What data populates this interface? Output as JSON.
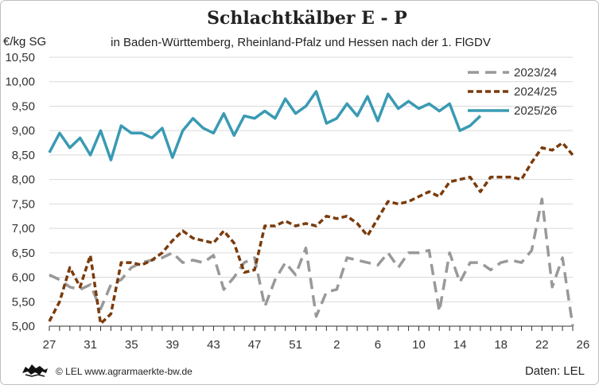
{
  "chart_data": {
    "type": "line",
    "title": "Schlachtkälber E - P",
    "subtitle": "in Baden-Württemberg, Rheinland-Pfalz und Hessen nach der 1. FlGDV",
    "ylabel": "€/kg SG",
    "ylim": [
      5.0,
      10.5
    ],
    "y_ticks": [
      "5,00",
      "5,50",
      "6,00",
      "6,50",
      "7,00",
      "7,50",
      "8,00",
      "8,50",
      "9,00",
      "9,50",
      "10,00",
      "10,50"
    ],
    "x_ticks": [
      "27",
      "31",
      "35",
      "39",
      "43",
      "47",
      "51",
      "2",
      "6",
      "10",
      "14",
      "18",
      "22",
      "26"
    ],
    "x_weeks": [
      27,
      28,
      29,
      30,
      31,
      32,
      33,
      34,
      35,
      36,
      37,
      38,
      39,
      40,
      41,
      42,
      43,
      44,
      45,
      46,
      47,
      48,
      49,
      50,
      51,
      52,
      1,
      2,
      3,
      4,
      5,
      6,
      7,
      8,
      9,
      10,
      11,
      12,
      13,
      14,
      15,
      16,
      17,
      18,
      19,
      20,
      21,
      22,
      23,
      24,
      25,
      26
    ],
    "grid": "horizontal",
    "legend_position": "top-right",
    "series": [
      {
        "name": "2023/24",
        "color": "#999999",
        "style": "dashed",
        "values": [
          6.05,
          5.95,
          5.8,
          5.75,
          5.85,
          5.35,
          5.85,
          5.95,
          6.2,
          6.3,
          6.35,
          6.4,
          6.5,
          6.3,
          6.35,
          6.3,
          6.45,
          5.75,
          6.0,
          6.3,
          6.4,
          5.4,
          5.95,
          6.3,
          6.05,
          6.6,
          5.2,
          5.7,
          5.75,
          6.4,
          6.35,
          6.3,
          6.25,
          6.5,
          6.2,
          6.5,
          6.5,
          6.55,
          5.3,
          6.5,
          5.9,
          6.3,
          6.3,
          6.15,
          6.3,
          6.35,
          6.3,
          6.55,
          7.6,
          5.8,
          6.4,
          5.0
        ]
      },
      {
        "name": "2024/25",
        "color": "#7a3b0c",
        "style": "dotted",
        "values": [
          5.1,
          5.5,
          6.2,
          5.8,
          6.45,
          5.05,
          5.25,
          6.3,
          6.3,
          6.25,
          6.35,
          6.5,
          6.75,
          6.95,
          6.8,
          6.75,
          6.7,
          6.95,
          6.7,
          6.1,
          6.15,
          7.05,
          7.05,
          7.15,
          7.05,
          7.1,
          7.05,
          7.25,
          7.2,
          7.25,
          7.1,
          6.85,
          7.2,
          7.55,
          7.5,
          7.55,
          7.65,
          7.75,
          7.65,
          7.95,
          8.0,
          8.05,
          7.75,
          8.05,
          8.05,
          8.05,
          8.0,
          8.35,
          8.65,
          8.6,
          8.75,
          8.5
        ]
      },
      {
        "name": "2025/26",
        "color": "#3a9ab3",
        "style": "solid",
        "values": [
          8.55,
          8.95,
          8.65,
          8.85,
          8.5,
          9.0,
          8.4,
          9.1,
          8.95,
          8.95,
          8.85,
          9.05,
          8.45,
          9.0,
          9.25,
          9.05,
          8.95,
          9.35,
          8.9,
          9.3,
          9.25,
          9.4,
          9.25,
          9.65,
          9.35,
          9.5,
          9.8,
          9.15,
          9.25,
          9.55,
          9.3,
          9.7,
          9.2,
          9.75,
          9.45,
          9.6,
          9.45,
          9.55,
          9.4,
          9.55,
          9.0,
          9.1,
          9.3
        ]
      }
    ]
  },
  "footer": {
    "logo_icon": "lion-crest-icon",
    "credit": "© LEL www.agrarmaerkte-bw.de",
    "source": "Daten:  LEL"
  }
}
